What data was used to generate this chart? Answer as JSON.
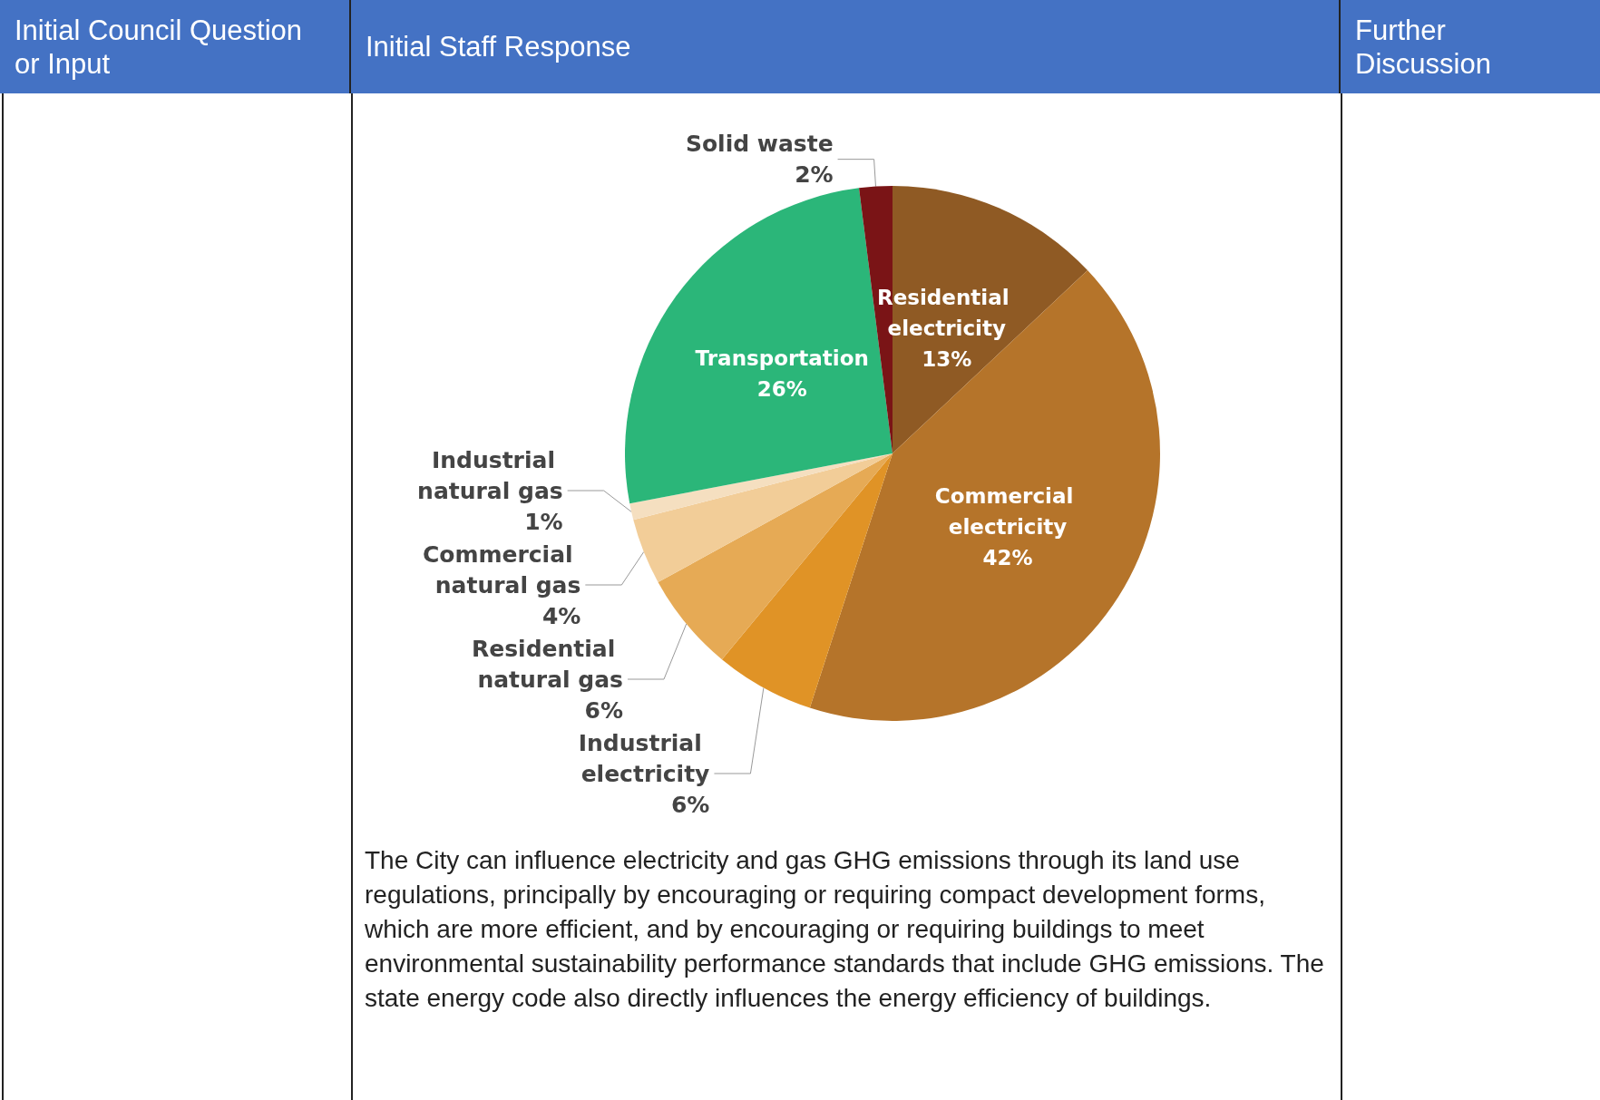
{
  "chart_data": {
    "type": "pie",
    "categories": [
      "Residential electricity",
      "Commercial electricity",
      "Industrial electricity",
      "Residential natural gas",
      "Commercial natural gas",
      "Industrial natural gas",
      "Transportation",
      "Solid waste"
    ],
    "values": [
      13,
      42,
      6,
      6,
      4,
      1,
      26,
      2
    ],
    "value_labels": [
      "13%",
      "42%",
      "6%",
      "6%",
      "4%",
      "1%",
      "26%",
      "2%"
    ],
    "colors": [
      "#8f5a24",
      "#b5742a",
      "#e09326",
      "#e6aa55",
      "#f2cd98",
      "#f5dfc0",
      "#2bb679",
      "#7a1416"
    ],
    "legend": false,
    "annotations": [
      "Initial Council Question or Input",
      "Initial Staff Response",
      "Further Discussion",
      "The City can influence electricity and gas GHG emissions through its land use regulations, principally by encouraging or requiring compact development forms, which are more efficient, and by encouraging or requiring buildings to meet environmental sustainability performance standards that include GHG emissions. The state energy code also directly influences the energy efficiency of buildings."
    ]
  }
}
